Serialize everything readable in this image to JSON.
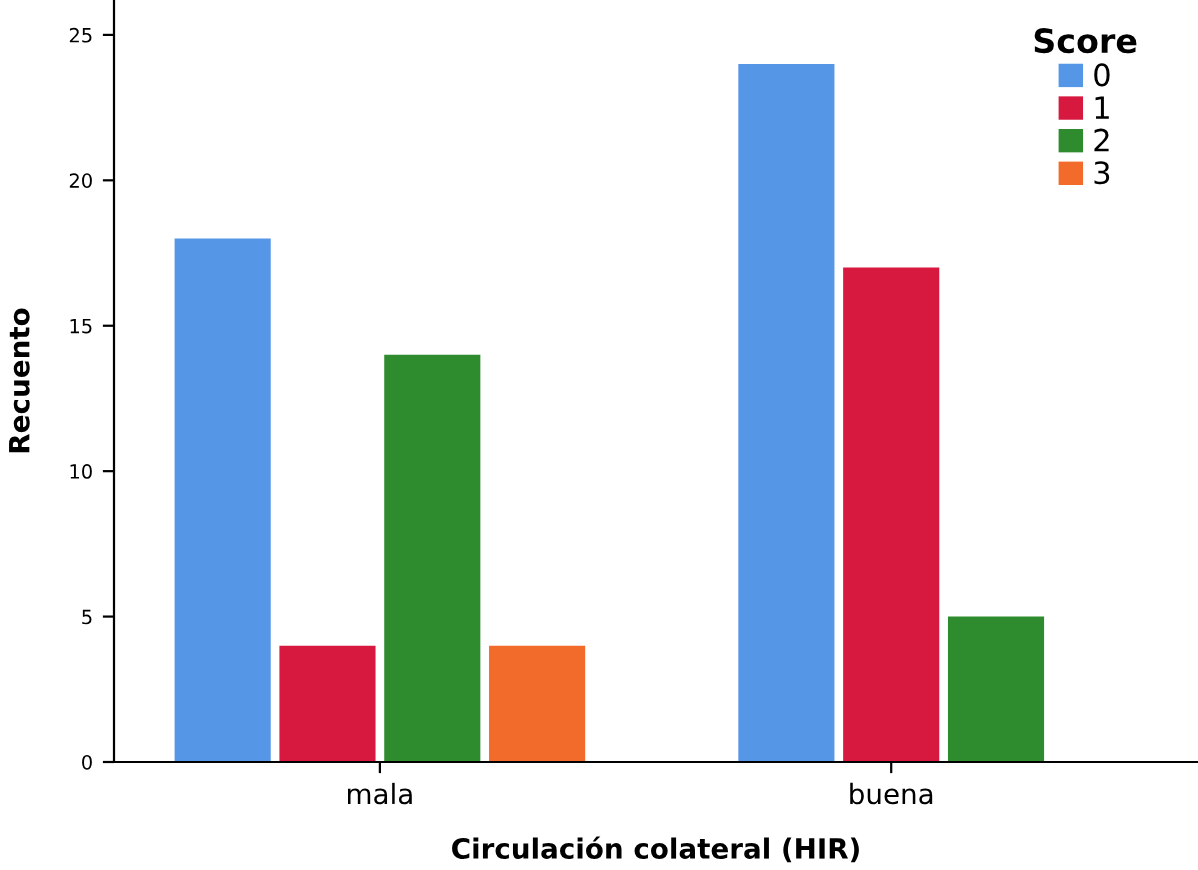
{
  "chart_data": {
    "type": "bar",
    "xlabel": "Circulación colateral (HIR)",
    "ylabel": "Recuento",
    "legend_title": "Score",
    "categories": [
      "mala",
      "buena"
    ],
    "series": [
      {
        "name": "0",
        "color": "#5596e6",
        "values": [
          18,
          24
        ]
      },
      {
        "name": "1",
        "color": "#d7193f",
        "values": [
          4,
          17
        ]
      },
      {
        "name": "2",
        "color": "#2e8b2e",
        "values": [
          14,
          5
        ]
      },
      {
        "name": "3",
        "color": "#f26b2a",
        "values": [
          4,
          null
        ]
      }
    ],
    "ylim": [
      0,
      26.2
    ],
    "yticks": [
      0,
      5,
      10,
      15,
      20,
      25
    ],
    "grid": false,
    "legend": "top right"
  }
}
